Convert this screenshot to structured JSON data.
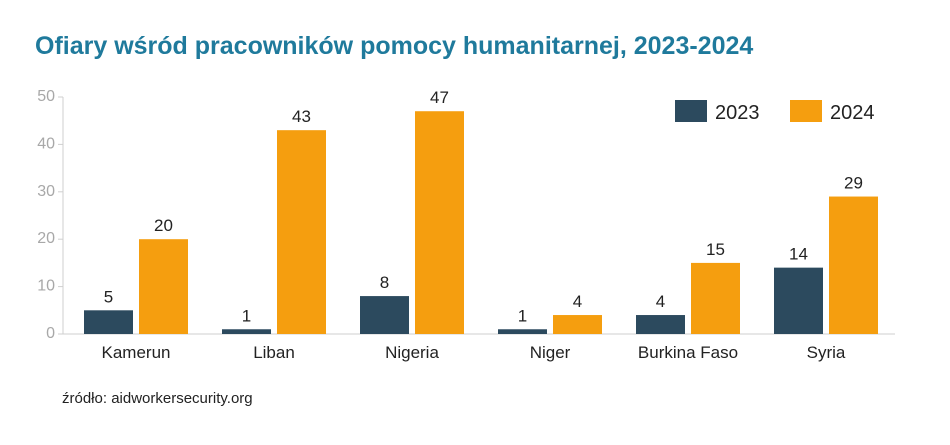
{
  "chart_data": {
    "type": "bar",
    "title": "Ofiary wśród pracowników pomocy humanitarnej, 2023-2024",
    "title_color": "#1f7a9c",
    "categories": [
      "Kamerun",
      "Liban",
      "Nigeria",
      "Niger",
      "Burkina Faso",
      "Syria"
    ],
    "series": [
      {
        "name": "2023",
        "values": [
          5,
          1,
          8,
          1,
          4,
          14
        ],
        "color": "#2c4a5e"
      },
      {
        "name": "2024",
        "values": [
          20,
          43,
          47,
          4,
          15,
          29
        ],
        "color": "#f59e0f"
      }
    ],
    "ylim": [
      0,
      50
    ],
    "yticks": [
      0,
      10,
      20,
      30,
      40,
      50
    ],
    "xlabel": "",
    "ylabel": "",
    "grid": false,
    "legend": "top-right",
    "data_labels": true
  },
  "source": "źródło: aidworkersecurity.org"
}
